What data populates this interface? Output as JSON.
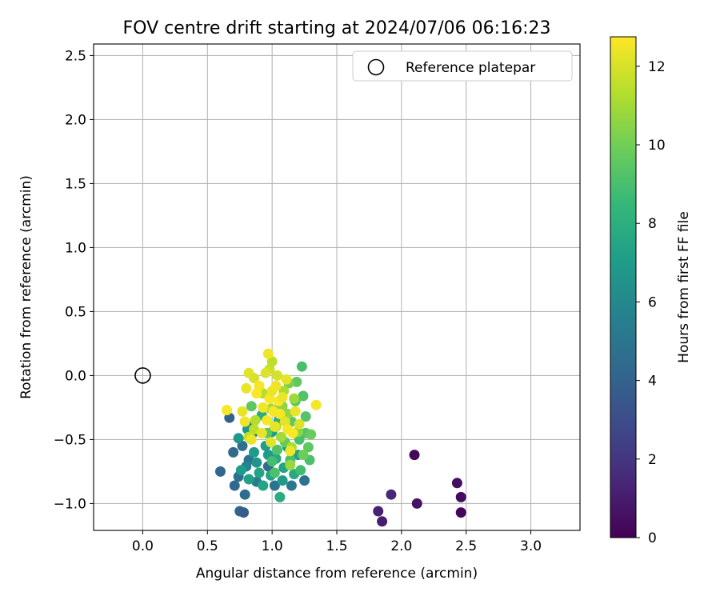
{
  "chart_data": {
    "type": "scatter",
    "title": "FOV centre drift starting at 2024/07/06 06:16:23",
    "xlabel": "Angular distance from reference (arcmin)",
    "ylabel": "Rotation from reference (arcmin)",
    "xlim": [
      -0.38,
      3.38
    ],
    "ylim": [
      -1.21,
      2.59
    ],
    "xticks": [
      0.0,
      0.5,
      1.0,
      1.5,
      2.0,
      2.5,
      3.0
    ],
    "xtick_labels": [
      "0.0",
      "0.5",
      "1.0",
      "1.5",
      "2.0",
      "2.5",
      "3.0"
    ],
    "yticks": [
      -1.0,
      -0.5,
      0.0,
      0.5,
      1.0,
      1.5,
      2.0,
      2.5
    ],
    "ytick_labels": [
      "−1.0",
      "−0.5",
      "0.0",
      "0.5",
      "1.0",
      "1.5",
      "2.0",
      "2.5"
    ],
    "grid": true,
    "legend": {
      "position": "top-right",
      "entries": [
        {
          "label": "Reference platepar",
          "marker": "open-circle"
        }
      ]
    },
    "reference_point": {
      "x": 0.0,
      "y": 0.0
    },
    "colorbar": {
      "label": "Hours from first FF file",
      "colormap": "viridis",
      "range": [
        0,
        12.75
      ],
      "ticks": [
        0,
        2,
        4,
        6,
        8,
        10,
        12
      ],
      "tick_labels": [
        "0",
        "2",
        "4",
        "6",
        "8",
        "10",
        "12"
      ],
      "colors": [
        "#440154",
        "#482878",
        "#3e4a89",
        "#31688e",
        "#26828e",
        "#1f9e89",
        "#35b779",
        "#6dcd59",
        "#b4de2c",
        "#fde725"
      ]
    },
    "series": [
      {
        "points": [
          {
            "x": 2.1,
            "y": -0.62,
            "c": 0.3
          },
          {
            "x": 2.43,
            "y": -0.84,
            "c": 0.5
          },
          {
            "x": 2.46,
            "y": -0.95,
            "c": 0.4
          },
          {
            "x": 2.46,
            "y": -1.07,
            "c": 0.2
          },
          {
            "x": 2.12,
            "y": -1.0,
            "c": 0.6
          },
          {
            "x": 1.92,
            "y": -0.93,
            "c": 1.4
          },
          {
            "x": 1.82,
            "y": -1.06,
            "c": 1.2
          },
          {
            "x": 1.85,
            "y": -1.14,
            "c": 1.0
          },
          {
            "x": 0.6,
            "y": -0.75,
            "c": 4.2
          },
          {
            "x": 0.67,
            "y": -0.33,
            "c": 4.0
          },
          {
            "x": 0.7,
            "y": -0.6,
            "c": 4.4
          },
          {
            "x": 0.71,
            "y": -0.86,
            "c": 4.3
          },
          {
            "x": 0.74,
            "y": -0.79,
            "c": 4.6
          },
          {
            "x": 0.75,
            "y": -1.06,
            "c": 4.1
          },
          {
            "x": 0.78,
            "y": -1.07,
            "c": 3.8
          },
          {
            "x": 0.79,
            "y": -0.93,
            "c": 4.5
          },
          {
            "x": 0.77,
            "y": -0.55,
            "c": 4.7
          },
          {
            "x": 0.82,
            "y": -0.66,
            "c": 4.8
          },
          {
            "x": 0.85,
            "y": -0.45,
            "c": 5.0
          },
          {
            "x": 0.8,
            "y": -0.71,
            "c": 5.6
          },
          {
            "x": 0.88,
            "y": -0.83,
            "c": 5.3
          },
          {
            "x": 1.02,
            "y": -0.86,
            "c": 4.9
          },
          {
            "x": 1.15,
            "y": -0.86,
            "c": 5.2
          },
          {
            "x": 1.25,
            "y": -0.82,
            "c": 4.8
          },
          {
            "x": 0.97,
            "y": -0.71,
            "c": 4.4
          },
          {
            "x": 0.83,
            "y": -0.4,
            "c": 5.1
          },
          {
            "x": 0.74,
            "y": -0.49,
            "c": 6.8
          },
          {
            "x": 0.76,
            "y": -0.74,
            "c": 7.0
          },
          {
            "x": 0.82,
            "y": -0.81,
            "c": 7.2
          },
          {
            "x": 0.86,
            "y": -0.6,
            "c": 6.9
          },
          {
            "x": 0.9,
            "y": -0.76,
            "c": 7.4
          },
          {
            "x": 0.93,
            "y": -0.86,
            "c": 7.5
          },
          {
            "x": 0.95,
            "y": -0.55,
            "c": 7.1
          },
          {
            "x": 0.99,
            "y": -0.78,
            "c": 7.3
          },
          {
            "x": 1.03,
            "y": -0.65,
            "c": 7.6
          },
          {
            "x": 1.06,
            "y": -0.95,
            "c": 7.8
          },
          {
            "x": 1.09,
            "y": -0.72,
            "c": 7.4
          },
          {
            "x": 1.12,
            "y": -0.56,
            "c": 7.0
          },
          {
            "x": 1.17,
            "y": -0.77,
            "c": 7.7
          },
          {
            "x": 0.81,
            "y": -0.42,
            "c": 6.7
          },
          {
            "x": 0.92,
            "y": -0.31,
            "c": 7.9
          },
          {
            "x": 1.0,
            "y": -0.44,
            "c": 7.2
          },
          {
            "x": 1.05,
            "y": -0.35,
            "c": 8.0
          },
          {
            "x": 1.2,
            "y": -0.62,
            "c": 7.3
          },
          {
            "x": 0.88,
            "y": -0.68,
            "c": 6.6
          },
          {
            "x": 0.97,
            "y": -0.62,
            "c": 7.0
          },
          {
            "x": 1.08,
            "y": -0.82,
            "c": 6.9
          },
          {
            "x": 1.23,
            "y": 0.07,
            "c": 9.0
          },
          {
            "x": 1.24,
            "y": -0.16,
            "c": 9.2
          },
          {
            "x": 1.18,
            "y": -0.2,
            "c": 9.4
          },
          {
            "x": 1.26,
            "y": -0.45,
            "c": 9.3
          },
          {
            "x": 1.3,
            "y": -0.46,
            "c": 9.8
          },
          {
            "x": 1.28,
            "y": -0.56,
            "c": 9.6
          },
          {
            "x": 1.29,
            "y": -0.66,
            "c": 9.1
          },
          {
            "x": 1.24,
            "y": -0.62,
            "c": 9.9
          },
          {
            "x": 1.22,
            "y": -0.74,
            "c": 8.8
          },
          {
            "x": 1.15,
            "y": -0.36,
            "c": 9.5
          },
          {
            "x": 1.1,
            "y": -0.52,
            "c": 9.7
          },
          {
            "x": 1.14,
            "y": -0.66,
            "c": 9.0
          },
          {
            "x": 1.04,
            "y": -0.58,
            "c": 9.2
          },
          {
            "x": 1.0,
            "y": -0.67,
            "c": 8.9
          },
          {
            "x": 0.96,
            "y": -0.45,
            "c": 9.4
          },
          {
            "x": 1.06,
            "y": -0.22,
            "c": 9.8
          },
          {
            "x": 1.19,
            "y": -0.05,
            "c": 9.6
          },
          {
            "x": 1.26,
            "y": -0.32,
            "c": 9.3
          },
          {
            "x": 1.21,
            "y": -0.5,
            "c": 9.0
          },
          {
            "x": 1.13,
            "y": -0.06,
            "c": 10.2
          },
          {
            "x": 0.84,
            "y": -0.24,
            "c": 9.5
          },
          {
            "x": 1.02,
            "y": -0.76,
            "c": 9.1
          },
          {
            "x": 1.14,
            "y": -0.7,
            "c": 10.8
          },
          {
            "x": 1.2,
            "y": -0.44,
            "c": 10.5
          },
          {
            "x": 1.12,
            "y": -0.3,
            "c": 10.7
          },
          {
            "x": 1.07,
            "y": -0.48,
            "c": 11.0
          },
          {
            "x": 1.17,
            "y": -0.18,
            "c": 10.9
          },
          {
            "x": 1.09,
            "y": -0.12,
            "c": 11.2
          },
          {
            "x": 0.99,
            "y": -0.26,
            "c": 11.0
          },
          {
            "x": 0.93,
            "y": -0.14,
            "c": 11.4
          },
          {
            "x": 0.87,
            "y": -0.35,
            "c": 11.3
          },
          {
            "x": 0.82,
            "y": -0.48,
            "c": 11.6
          },
          {
            "x": 0.86,
            "y": -0.42,
            "c": 11.5
          },
          {
            "x": 1.03,
            "y": -0.4,
            "c": 11.1
          },
          {
            "x": 1.08,
            "y": -0.24,
            "c": 10.6
          },
          {
            "x": 1.15,
            "y": -0.56,
            "c": 11.2
          },
          {
            "x": 0.98,
            "y": 0.05,
            "c": 11.8
          },
          {
            "x": 1.0,
            "y": 0.11,
            "c": 11.5
          },
          {
            "x": 0.65,
            "y": -0.27,
            "c": 12.6
          },
          {
            "x": 0.77,
            "y": -0.28,
            "c": 12.3
          },
          {
            "x": 0.79,
            "y": -0.36,
            "c": 12.5
          },
          {
            "x": 0.8,
            "y": -0.1,
            "c": 12.4
          },
          {
            "x": 0.82,
            "y": 0.02,
            "c": 12.2
          },
          {
            "x": 0.86,
            "y": -0.02,
            "c": 12.0
          },
          {
            "x": 0.88,
            "y": -0.14,
            "c": 12.7
          },
          {
            "x": 0.9,
            "y": -0.08,
            "c": 12.6
          },
          {
            "x": 0.93,
            "y": -0.25,
            "c": 12.5
          },
          {
            "x": 0.95,
            "y": 0.02,
            "c": 12.1
          },
          {
            "x": 0.96,
            "y": -0.35,
            "c": 12.6
          },
          {
            "x": 0.98,
            "y": -0.18,
            "c": 12.7
          },
          {
            "x": 1.0,
            "y": -0.12,
            "c": 12.4
          },
          {
            "x": 1.01,
            "y": -0.28,
            "c": 12.6
          },
          {
            "x": 1.02,
            "y": -0.4,
            "c": 12.3
          },
          {
            "x": 1.03,
            "y": -0.08,
            "c": 12.5
          },
          {
            "x": 1.04,
            "y": 0.0,
            "c": 12.0
          },
          {
            "x": 1.05,
            "y": -0.2,
            "c": 12.7
          },
          {
            "x": 1.06,
            "y": -0.3,
            "c": 12.6
          },
          {
            "x": 1.08,
            "y": -0.17,
            "c": 12.4
          },
          {
            "x": 1.1,
            "y": -0.36,
            "c": 12.2
          },
          {
            "x": 1.11,
            "y": -0.03,
            "c": 12.3
          },
          {
            "x": 1.12,
            "y": -0.42,
            "c": 12.6
          },
          {
            "x": 1.14,
            "y": -0.59,
            "c": 12.5
          },
          {
            "x": 1.16,
            "y": -0.45,
            "c": 12.7
          },
          {
            "x": 1.18,
            "y": -0.28,
            "c": 12.4
          },
          {
            "x": 1.21,
            "y": -0.38,
            "c": 12.1
          },
          {
            "x": 1.34,
            "y": -0.23,
            "c": 12.6
          },
          {
            "x": 0.84,
            "y": -0.5,
            "c": 12.4
          },
          {
            "x": 0.92,
            "y": -0.45,
            "c": 12.3
          },
          {
            "x": 0.97,
            "y": 0.17,
            "c": 12.5
          },
          {
            "x": 0.99,
            "y": -0.52,
            "c": 12.2
          }
        ]
      }
    ]
  }
}
